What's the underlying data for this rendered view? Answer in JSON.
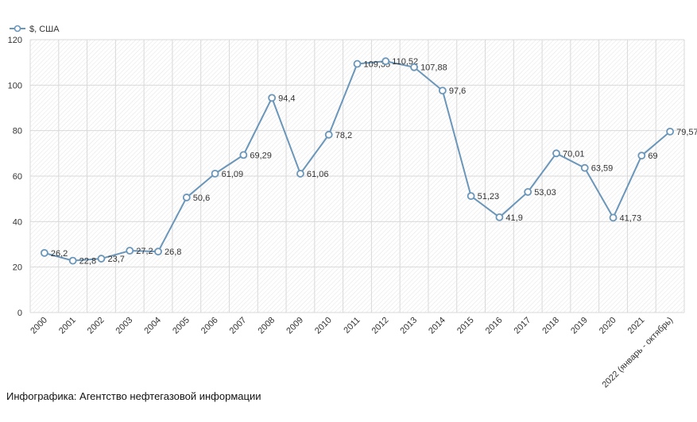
{
  "caption": "Инфографика: Агентство нефтегазовой информации",
  "chart_data": {
    "type": "line",
    "legend": "top-left",
    "grid": true,
    "ylim": [
      0,
      120
    ],
    "yticks": [
      "0",
      "20",
      "40",
      "60",
      "80",
      "100",
      "120"
    ],
    "categories": [
      "2000",
      "2001",
      "2002",
      "2003",
      "2004",
      "2005",
      "2006",
      "2007",
      "2008",
      "2009",
      "2010",
      "2011",
      "2012",
      "2013",
      "2014",
      "2015",
      "2016",
      "2017",
      "2018",
      "2019",
      "2020",
      "2021",
      "2022 (январь - октябрь)"
    ],
    "series": [
      {
        "name": "$, США",
        "color": "#6a96ba",
        "values": [
          26.2,
          22.8,
          23.7,
          27.2,
          26.8,
          50.6,
          61.09,
          69.29,
          94.4,
          61.06,
          78.2,
          109.35,
          110.52,
          107.88,
          97.6,
          51.23,
          41.9,
          53.03,
          70.01,
          63.59,
          41.73,
          69,
          79.57
        ],
        "labels": [
          "26,2",
          "22,8",
          "23,7",
          "27,2",
          "26,8",
          "50,6",
          "61,09",
          "69,29",
          "94,4",
          "61,06",
          "78,2",
          "109,35",
          "110,52",
          "107,88",
          "97,6",
          "51,23",
          "41,9",
          "53,03",
          "70,01",
          "63,59",
          "41,73",
          "69",
          "79,57"
        ]
      }
    ]
  }
}
